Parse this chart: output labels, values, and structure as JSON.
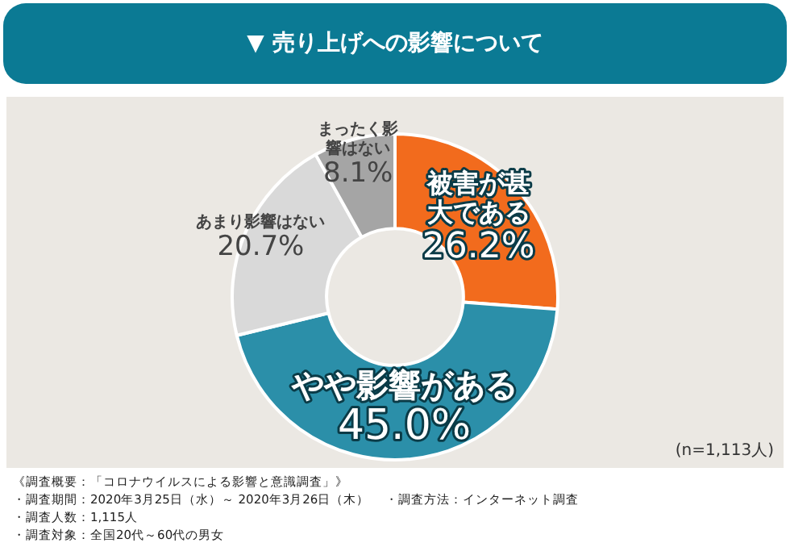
{
  "chart_data": {
    "type": "donut",
    "title": "▼ 売り上げへの影響について",
    "categories": [
      "被害が甚大である",
      "やや影響がある",
      "あまり影響はない",
      "まったく影響はない"
    ],
    "values": [
      26.2,
      45.0,
      20.7,
      8.1
    ],
    "colors": [
      "#f26b1d",
      "#2b8fa9",
      "#d9d9d9",
      "#a5a5a5"
    ],
    "value_labels": [
      "26.2%",
      "45.0%",
      "20.7%",
      "8.1%"
    ],
    "legend": false,
    "annotations": [
      "(n=1,113人)",
      "《調査概要：「コロナウイルスによる影響と意識調査」》",
      "・調査期間：2020年3月25日（水）～ 2020年3月26日（木）",
      "・調査方法：インターネット調査",
      "・調査人数：1,115人",
      "・調査対象：全国20代～60代の男女"
    ]
  }
}
